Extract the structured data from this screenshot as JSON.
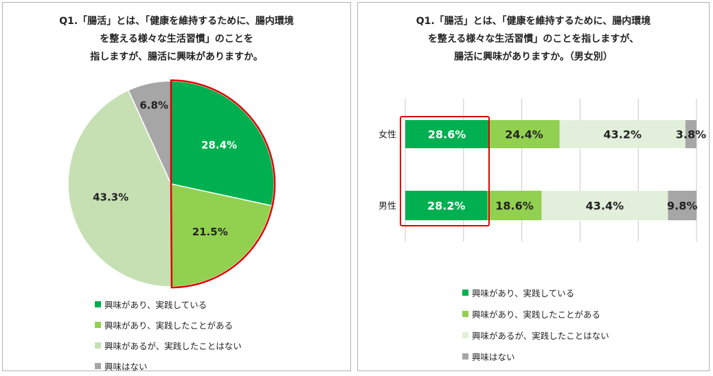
{
  "colors": {
    "dark_green": "#00b050",
    "light_green": "#92d050",
    "pale_green": "#c6e0b4",
    "pale_green_bar": "#e2efda",
    "gray": "#a6a6a6",
    "highlight": "#e00000"
  },
  "chart_data": [
    {
      "type": "pie",
      "title": "Q1.「腸活」とは、「健康を維持するために、腸内環境\nを整える様々な生活習慣」のことを\n指しますが、腸活に興味がありますか。",
      "categories": [
        "興味があり、実践している",
        "興味があり、実践したことがある",
        "興味があるが、実践したことはない",
        "興味はない"
      ],
      "values": [
        28.4,
        21.5,
        43.3,
        6.8
      ],
      "labels": [
        "28.4%",
        "21.5%",
        "43.3%",
        "6.8%"
      ],
      "colors": [
        "#00b050",
        "#92d050",
        "#c6e0b4",
        "#a6a6a6"
      ],
      "highlighted": [
        0,
        1
      ]
    },
    {
      "type": "bar",
      "orientation": "horizontal",
      "stacked": true,
      "title": "Q1.「腸活」とは、「健康を維持するために、腸内環境\nを整える様々な生活習慣」のことを指しますが、\n腸活に興味がありますか。（男女別）",
      "categories": [
        "女性",
        "男性"
      ],
      "series": [
        {
          "name": "興味があり、実践している",
          "values": [
            28.6,
            28.2
          ],
          "labels": [
            "28.6%",
            "28.2%"
          ],
          "color": "#00b050"
        },
        {
          "name": "興味があり、実践したことがある",
          "values": [
            24.4,
            18.6
          ],
          "labels": [
            "24.4%",
            "18.6%"
          ],
          "color": "#92d050"
        },
        {
          "name": "興味があるが、実践したことはない",
          "values": [
            43.2,
            43.4
          ],
          "labels": [
            "43.2%",
            "43.4%"
          ],
          "color": "#e2efda"
        },
        {
          "name": "興味はない",
          "values": [
            3.8,
            9.8
          ],
          "labels": [
            "3.8%",
            "9.8%"
          ],
          "color": "#a6a6a6"
        }
      ],
      "xlim": [
        0,
        100
      ],
      "grid": true,
      "highlighted_series": 0
    }
  ]
}
